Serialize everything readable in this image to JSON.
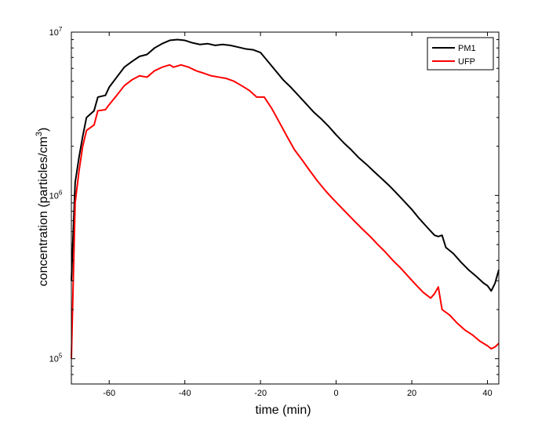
{
  "chart_data": {
    "type": "line",
    "xlabel": "time (min)",
    "ylabel": "concentration (particles/cm",
    "ylabel_superscript": "3",
    "ylabel_close": ")",
    "xlim": [
      -70,
      43
    ],
    "ylim": [
      70000,
      10000000
    ],
    "yscale": "log",
    "xticks": [
      -60,
      -40,
      -20,
      0,
      20,
      40
    ],
    "xtick_labels": [
      "-60",
      "-40",
      "-20",
      "0",
      "20",
      "40"
    ],
    "yticks": [
      100000,
      1000000,
      10000000
    ],
    "ytick_labels": [
      {
        "base": "10",
        "exp": "5"
      },
      {
        "base": "10",
        "exp": "6"
      },
      {
        "base": "10",
        "exp": "7"
      }
    ],
    "grid": false,
    "legend_position": "top-right",
    "series": [
      {
        "name": "PM1",
        "color": "#000000",
        "points": [
          [
            -70,
            300000
          ],
          [
            -69,
            1200000
          ],
          [
            -68,
            1700000
          ],
          [
            -67,
            2300000
          ],
          [
            -66,
            3000000
          ],
          [
            -64,
            3300000
          ],
          [
            -63,
            4000000
          ],
          [
            -61,
            4100000
          ],
          [
            -60,
            4600000
          ],
          [
            -58,
            5300000
          ],
          [
            -56,
            6100000
          ],
          [
            -54,
            6600000
          ],
          [
            -52,
            7100000
          ],
          [
            -50,
            7300000
          ],
          [
            -48,
            8000000
          ],
          [
            -46,
            8500000
          ],
          [
            -44,
            8900000
          ],
          [
            -42,
            9000000
          ],
          [
            -40,
            8900000
          ],
          [
            -38,
            8600000
          ],
          [
            -36,
            8400000
          ],
          [
            -34,
            8500000
          ],
          [
            -32,
            8300000
          ],
          [
            -30,
            8400000
          ],
          [
            -28,
            8300000
          ],
          [
            -26,
            8100000
          ],
          [
            -24,
            7900000
          ],
          [
            -22,
            7800000
          ],
          [
            -20,
            7500000
          ],
          [
            -18,
            6600000
          ],
          [
            -16,
            5800000
          ],
          [
            -14,
            5100000
          ],
          [
            -12,
            4600000
          ],
          [
            -10,
            4100000
          ],
          [
            -8,
            3650000
          ],
          [
            -6,
            3250000
          ],
          [
            -4,
            2950000
          ],
          [
            -2,
            2650000
          ],
          [
            0,
            2350000
          ],
          [
            2,
            2100000
          ],
          [
            4,
            1900000
          ],
          [
            6,
            1700000
          ],
          [
            8,
            1550000
          ],
          [
            10,
            1400000
          ],
          [
            12,
            1270000
          ],
          [
            14,
            1150000
          ],
          [
            16,
            1030000
          ],
          [
            18,
            920000
          ],
          [
            20,
            820000
          ],
          [
            22,
            720000
          ],
          [
            24,
            640000
          ],
          [
            26,
            570000
          ],
          [
            27,
            560000
          ],
          [
            28,
            570000
          ],
          [
            29,
            480000
          ],
          [
            31,
            440000
          ],
          [
            33,
            390000
          ],
          [
            35,
            350000
          ],
          [
            37,
            320000
          ],
          [
            39,
            290000
          ],
          [
            40,
            280000
          ],
          [
            41,
            260000
          ],
          [
            42,
            290000
          ],
          [
            43,
            350000
          ]
        ]
      },
      {
        "name": "UFP",
        "color": "#ff0000",
        "points": [
          [
            -70,
            100000
          ],
          [
            -69,
            900000
          ],
          [
            -68,
            1400000
          ],
          [
            -67,
            2000000
          ],
          [
            -66,
            2500000
          ],
          [
            -64,
            2700000
          ],
          [
            -63,
            3300000
          ],
          [
            -61,
            3350000
          ],
          [
            -60,
            3600000
          ],
          [
            -58,
            4100000
          ],
          [
            -56,
            4700000
          ],
          [
            -54,
            5100000
          ],
          [
            -52,
            5400000
          ],
          [
            -50,
            5300000
          ],
          [
            -48,
            5800000
          ],
          [
            -46,
            6100000
          ],
          [
            -44,
            6300000
          ],
          [
            -43,
            6100000
          ],
          [
            -41,
            6300000
          ],
          [
            -39,
            6100000
          ],
          [
            -37,
            5800000
          ],
          [
            -35,
            5600000
          ],
          [
            -33,
            5400000
          ],
          [
            -31,
            5300000
          ],
          [
            -29,
            5200000
          ],
          [
            -27,
            5000000
          ],
          [
            -25,
            4700000
          ],
          [
            -23,
            4400000
          ],
          [
            -21,
            4000000
          ],
          [
            -19,
            4000000
          ],
          [
            -17,
            3400000
          ],
          [
            -15,
            2800000
          ],
          [
            -13,
            2300000
          ],
          [
            -11,
            1900000
          ],
          [
            -9,
            1650000
          ],
          [
            -7,
            1420000
          ],
          [
            -5,
            1230000
          ],
          [
            -3,
            1080000
          ],
          [
            -1,
            960000
          ],
          [
            1,
            860000
          ],
          [
            3,
            770000
          ],
          [
            5,
            690000
          ],
          [
            7,
            620000
          ],
          [
            9,
            560000
          ],
          [
            11,
            500000
          ],
          [
            13,
            450000
          ],
          [
            15,
            400000
          ],
          [
            17,
            360000
          ],
          [
            19,
            320000
          ],
          [
            21,
            285000
          ],
          [
            23,
            255000
          ],
          [
            25,
            235000
          ],
          [
            26,
            250000
          ],
          [
            27,
            275000
          ],
          [
            28,
            200000
          ],
          [
            30,
            185000
          ],
          [
            32,
            165000
          ],
          [
            34,
            150000
          ],
          [
            36,
            140000
          ],
          [
            38,
            128000
          ],
          [
            40,
            120000
          ],
          [
            41,
            115000
          ],
          [
            42,
            118000
          ],
          [
            43,
            124000
          ]
        ]
      }
    ]
  }
}
